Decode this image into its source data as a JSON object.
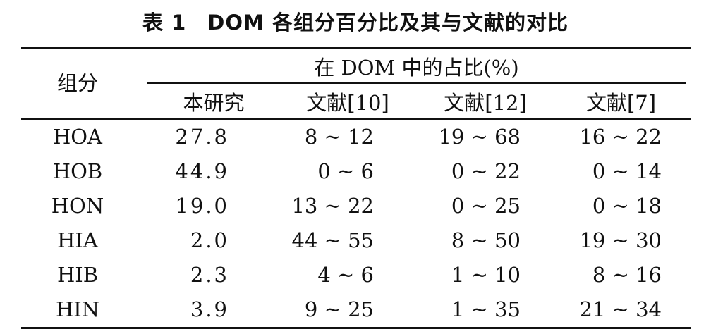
{
  "table": {
    "title": "表 1　DOM 各组分百分比及其与文献的对比",
    "header": {
      "row_label": "组分",
      "group_label": "在 DOM 中的占比(%)",
      "columns": [
        "本研究",
        "文献[10]",
        "文献[12]",
        "文献[7]"
      ]
    },
    "rows": [
      {
        "component": "HOA",
        "study": "27.8",
        "ref10": "8 ~ 12",
        "ref12": "19 ~ 68",
        "ref7": "16 ~ 22"
      },
      {
        "component": "HOB",
        "study": "44.9",
        "ref10": "0 ~ 6",
        "ref12": "0 ~ 22",
        "ref7": "0 ~ 14"
      },
      {
        "component": "HON",
        "study": "19.0",
        "ref10": "13 ~ 22",
        "ref12": "0 ~ 25",
        "ref7": "0 ~ 18"
      },
      {
        "component": "HIA",
        "study": "2.0",
        "ref10": "44 ~ 55",
        "ref12": "8 ~ 50",
        "ref7": "19 ~ 30"
      },
      {
        "component": "HIB",
        "study": "2.3",
        "ref10": "4 ~ 6",
        "ref12": "1 ~ 10",
        "ref7": "8 ~ 16"
      },
      {
        "component": "HIN",
        "study": "3.9",
        "ref10": "9 ~ 25",
        "ref12": "1 ~ 35",
        "ref7": "21 ~ 34"
      }
    ]
  }
}
